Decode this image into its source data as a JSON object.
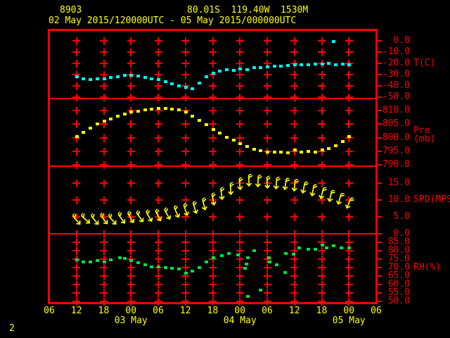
{
  "page_number": "2",
  "header": {
    "station_id": "8903",
    "location": "80.01S  119.40W  1530M",
    "time_range": "02 May 2015/120000UTC - 05 May 2015/000000UTC"
  },
  "colors": {
    "grid": "#ff0000",
    "header_text": "#ffff00",
    "time_labels": "#ffff00",
    "temperature_series": "#00ffff",
    "pressure_series": "#ffff00",
    "wind_series": "#ffff00",
    "humidity_series": "#00e040"
  },
  "x_axis": {
    "tick_labels": [
      "06",
      "12",
      "18",
      "00",
      "06",
      "12",
      "18",
      "00",
      "06",
      "12",
      "18",
      "00",
      "06"
    ],
    "tick_interval_hours": 6,
    "date_labels": [
      {
        "label": "03 May",
        "hour": 18
      },
      {
        "label": "04 May",
        "hour": 42
      },
      {
        "label": "05 May",
        "hour": 66
      }
    ]
  },
  "panels": [
    {
      "id": "temperature",
      "unit_label": "T(C)",
      "tick_values": [
        "0.0",
        "-10.0",
        "-20.0",
        "-30.0",
        "-40.0",
        "-50.0"
      ]
    },
    {
      "id": "pressure",
      "unit_label": "Pre (mb)",
      "tick_values": [
        "810.0",
        "805.0",
        "800.0",
        "795.0",
        "790.0"
      ]
    },
    {
      "id": "wind",
      "unit_label": "SPD(MPS)",
      "tick_values": [
        "15.0",
        "10.0",
        "5.0",
        "0.0"
      ]
    },
    {
      "id": "humidity",
      "unit_label": "RH(%)",
      "tick_values": [
        "85.0",
        "80.0",
        "75.0",
        "70.0",
        "65.0",
        "60.0",
        "55.0",
        "50.0"
      ]
    }
  ],
  "chart_data": [
    {
      "type": "scatter",
      "name": "temperature",
      "ylabel": "T(C)",
      "ylim": [
        -50,
        10
      ],
      "x_unit": "hours from 02 May 06UTC",
      "x_start_hour": 6,
      "x_step_hours": 1.5,
      "values": [
        -32,
        -33.5,
        -34.5,
        -34,
        -33.5,
        -32.5,
        -32,
        -30.5,
        -30.5,
        -31,
        -32.5,
        -33.5,
        -34.5,
        -36,
        -38,
        -40,
        -41.5,
        -42.5,
        -37.5,
        -32,
        -29,
        -27,
        -25.5,
        -26.5,
        -25,
        -25.5,
        -23.5,
        -24,
        -23,
        -22.5,
        -22.5,
        -22,
        -21.5,
        -21,
        -21.5,
        -20.5,
        -20.5,
        -20,
        -21,
        -20.5,
        -21
      ],
      "outlier_points": [
        [
          62.5,
          -0.5
        ]
      ]
    },
    {
      "type": "scatter",
      "name": "pressure",
      "ylabel": "Pre (mb)",
      "ylim": [
        790,
        815
      ],
      "x_unit": "hours from 02 May 06UTC",
      "x_start_hour": 6,
      "x_step_hours": 1.5,
      "values": [
        800.5,
        802,
        803.5,
        805,
        806,
        807,
        808,
        808.8,
        809.4,
        809.8,
        810.2,
        810.5,
        810.8,
        810.8,
        810.5,
        810.2,
        809.5,
        808,
        806.3,
        804.7,
        803,
        801.6,
        800.2,
        799,
        797.8,
        796.8,
        795.8,
        795.2,
        794.8,
        794.6,
        794.8,
        794.5,
        795.6,
        794.6,
        795,
        794.8,
        795.4,
        796,
        797,
        798.5,
        800.3
      ]
    },
    {
      "type": "wind-barbs",
      "name": "wind_speed",
      "ylabel": "SPD(MPS)",
      "ylim": [
        0,
        20
      ],
      "x_unit": "hours from 02 May 06UTC",
      "points_hour_speed_angle": [
        [
          6,
          4,
          -42
        ],
        [
          8,
          4.2,
          -48
        ],
        [
          10,
          4,
          -40
        ],
        [
          12,
          4.2,
          -38
        ],
        [
          14,
          4,
          -42
        ],
        [
          16,
          4.3,
          -36
        ],
        [
          18,
          4.6,
          -32
        ],
        [
          20,
          4.8,
          -36
        ],
        [
          22,
          5,
          -30
        ],
        [
          24,
          5.3,
          -28
        ],
        [
          26,
          5.6,
          -30
        ],
        [
          28,
          6.2,
          -24
        ],
        [
          30,
          6.8,
          -20
        ],
        [
          32,
          7.6,
          -18
        ],
        [
          34,
          8.6,
          -14
        ],
        [
          36,
          10,
          -12
        ],
        [
          38,
          11.6,
          -8
        ],
        [
          40,
          13.2,
          -4
        ],
        [
          42,
          14.6,
          -6
        ],
        [
          44,
          15.6,
          -2
        ],
        [
          46,
          15.4,
          2
        ],
        [
          48,
          15,
          -4
        ],
        [
          50,
          14.8,
          4
        ],
        [
          52,
          14.5,
          8
        ],
        [
          54,
          14.2,
          6
        ],
        [
          56,
          13.6,
          12
        ],
        [
          58,
          12.8,
          10
        ],
        [
          60,
          11.8,
          14
        ],
        [
          62,
          11,
          12
        ],
        [
          64,
          10.2,
          16
        ],
        [
          66,
          9,
          22
        ]
      ]
    },
    {
      "type": "scatter",
      "name": "relative_humidity",
      "ylabel": "RH(%)",
      "ylim": [
        50,
        90
      ],
      "x_unit": "hours from 02 May 06UTC",
      "points_hour_value": [
        [
          6,
          74.5
        ],
        [
          7.5,
          73.5
        ],
        [
          9,
          73.5
        ],
        [
          10.5,
          74
        ],
        [
          12,
          73.5
        ],
        [
          13.5,
          74.5
        ],
        [
          15.5,
          76
        ],
        [
          16.5,
          75.5
        ],
        [
          18,
          74
        ],
        [
          19.5,
          73
        ],
        [
          21,
          71.5
        ],
        [
          22.5,
          70.5
        ],
        [
          24,
          70.5
        ],
        [
          25.5,
          70
        ],
        [
          27,
          69.5
        ],
        [
          28.5,
          69
        ],
        [
          30,
          66.5
        ],
        [
          31.5,
          68
        ],
        [
          33,
          70
        ],
        [
          34.5,
          73.5
        ],
        [
          36,
          76
        ],
        [
          38,
          77
        ],
        [
          39.5,
          78.5
        ],
        [
          41.5,
          77.5
        ],
        [
          43,
          69.5
        ],
        [
          43.3,
          72
        ],
        [
          43.7,
          76
        ],
        [
          43.7,
          53
        ],
        [
          45,
          80
        ],
        [
          46.5,
          56.5
        ],
        [
          48.3,
          76
        ],
        [
          48.5,
          73.5
        ],
        [
          50,
          71.5
        ],
        [
          51.8,
          67
        ],
        [
          52,
          78.5
        ],
        [
          53.7,
          78
        ],
        [
          55,
          81.5
        ],
        [
          57,
          81
        ],
        [
          58.5,
          81
        ],
        [
          60,
          83.5
        ],
        [
          61,
          81.5
        ],
        [
          62.5,
          83
        ],
        [
          64.3,
          81.5
        ],
        [
          66,
          81.5
        ]
      ]
    }
  ]
}
